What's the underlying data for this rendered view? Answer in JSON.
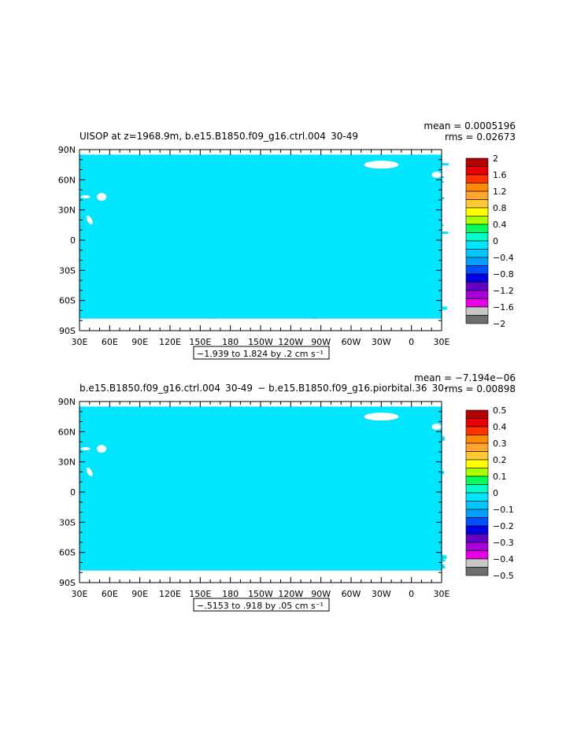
{
  "chart_data": [
    {
      "type": "heatmap",
      "title": "UISOP at z=1968.9m, b.e15.B1850.f09_g16.ctrl.004  30-49",
      "stats": {
        "mean": "mean = 0.0005196",
        "rms": "rms = 0.02673"
      },
      "x_tick_labels": [
        "30E",
        "60E",
        "90E",
        "120E",
        "150E",
        "180",
        "150W",
        "120W",
        "90W",
        "60W",
        "30W",
        "0",
        "30E"
      ],
      "y_tick_labels": [
        "90N",
        "60N",
        "30N",
        "0",
        "30S",
        "60S",
        "90S"
      ],
      "x_range": [
        30,
        390
      ],
      "y_range": [
        -90,
        90
      ],
      "contour_info": "−1.939 to 1.824 by .2 cm s⁻¹",
      "colorbar": {
        "labels": [
          "2",
          "1.6",
          "1.2",
          "0.8",
          "0.4",
          "0",
          "−0.4",
          "−0.8",
          "−1.2",
          "−1.6",
          "−2"
        ],
        "colors": [
          "#b40000",
          "#e60000",
          "#ff3200",
          "#ff8c00",
          "#ffa532",
          "#ffc832",
          "#ffff00",
          "#aaff00",
          "#00ff5a",
          "#00ffc8",
          "#00e6ff",
          "#00c8ff",
          "#00a0ff",
          "#0050ff",
          "#0000e6",
          "#6400c8",
          "#aa00dc",
          "#e600e6",
          "#c8c8c8",
          "#6e6e6e"
        ]
      },
      "dominant_value": 0,
      "secondary_value": -0.1
    },
    {
      "type": "heatmap",
      "title": "b.e15.B1850.f09_g16.ctrl.004  30-49  − b.e15.B1850.f09_g16.piorbital.36  30-",
      "stats": {
        "mean": "mean = −7.194e−06",
        "rms": "rms = 0.00898"
      },
      "x_tick_labels": [
        "30E",
        "60E",
        "90E",
        "120E",
        "150E",
        "180",
        "150W",
        "120W",
        "90W",
        "60W",
        "30W",
        "0",
        "30E"
      ],
      "y_tick_labels": [
        "90N",
        "60N",
        "30N",
        "0",
        "30S",
        "60S",
        "90S"
      ],
      "x_range": [
        30,
        390
      ],
      "y_range": [
        -90,
        90
      ],
      "contour_info": "−.5153 to .918 by .05 cm s⁻¹",
      "colorbar": {
        "labels": [
          "0.5",
          "0.4",
          "0.3",
          "0.2",
          "0.1",
          "0",
          "−0.1",
          "−0.2",
          "−0.3",
          "−0.4",
          "−0.5"
        ],
        "colors": [
          "#b40000",
          "#e60000",
          "#ff3200",
          "#ff8c00",
          "#ffa532",
          "#ffc832",
          "#ffff00",
          "#aaff00",
          "#00ff5a",
          "#00ffc8",
          "#00e6ff",
          "#00c8ff",
          "#00a0ff",
          "#0050ff",
          "#0000e6",
          "#6400c8",
          "#aa00dc",
          "#e600e6",
          "#c8c8c8",
          "#6e6e6e"
        ]
      },
      "dominant_value": 0,
      "secondary_value": -0.02
    }
  ]
}
